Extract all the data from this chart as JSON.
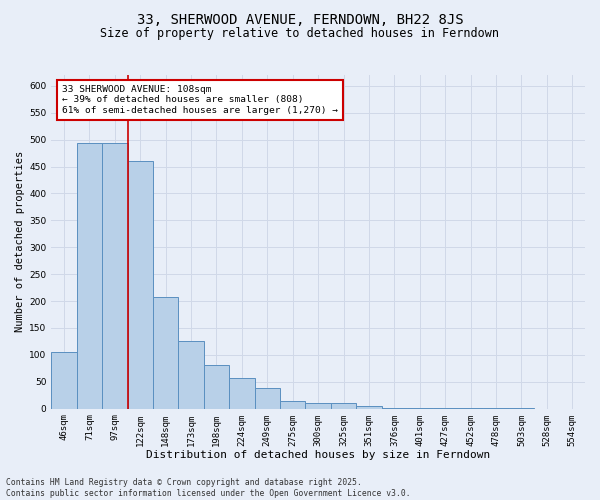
{
  "title": "33, SHERWOOD AVENUE, FERNDOWN, BH22 8JS",
  "subtitle": "Size of property relative to detached houses in Ferndown",
  "xlabel": "Distribution of detached houses by size in Ferndown",
  "ylabel": "Number of detached properties",
  "categories": [
    "46sqm",
    "71sqm",
    "97sqm",
    "122sqm",
    "148sqm",
    "173sqm",
    "198sqm",
    "224sqm",
    "249sqm",
    "275sqm",
    "300sqm",
    "325sqm",
    "351sqm",
    "376sqm",
    "401sqm",
    "427sqm",
    "452sqm",
    "478sqm",
    "503sqm",
    "528sqm",
    "554sqm"
  ],
  "values": [
    105,
    493,
    493,
    460,
    207,
    125,
    82,
    57,
    38,
    14,
    10,
    10,
    5,
    2,
    1,
    1,
    1,
    1,
    1,
    0,
    0
  ],
  "bar_color": "#b8d0e8",
  "bar_edge_color": "#5a8fc0",
  "red_line_x": 2.5,
  "annotation_text": "33 SHERWOOD AVENUE: 108sqm\n← 39% of detached houses are smaller (808)\n61% of semi-detached houses are larger (1,270) →",
  "annotation_box_color": "#ffffff",
  "annotation_box_edge_color": "#cc0000",
  "property_line_color": "#cc0000",
  "grid_color": "#d0d8e8",
  "background_color": "#e8eef8",
  "ylim": [
    0,
    620
  ],
  "yticks": [
    0,
    50,
    100,
    150,
    200,
    250,
    300,
    350,
    400,
    450,
    500,
    550,
    600
  ],
  "footer_text": "Contains HM Land Registry data © Crown copyright and database right 2025.\nContains public sector information licensed under the Open Government Licence v3.0.",
  "title_fontsize": 10,
  "subtitle_fontsize": 8.5,
  "xlabel_fontsize": 8,
  "ylabel_fontsize": 7.5,
  "tick_fontsize": 6.5,
  "annotation_fontsize": 6.8,
  "footer_fontsize": 5.8
}
